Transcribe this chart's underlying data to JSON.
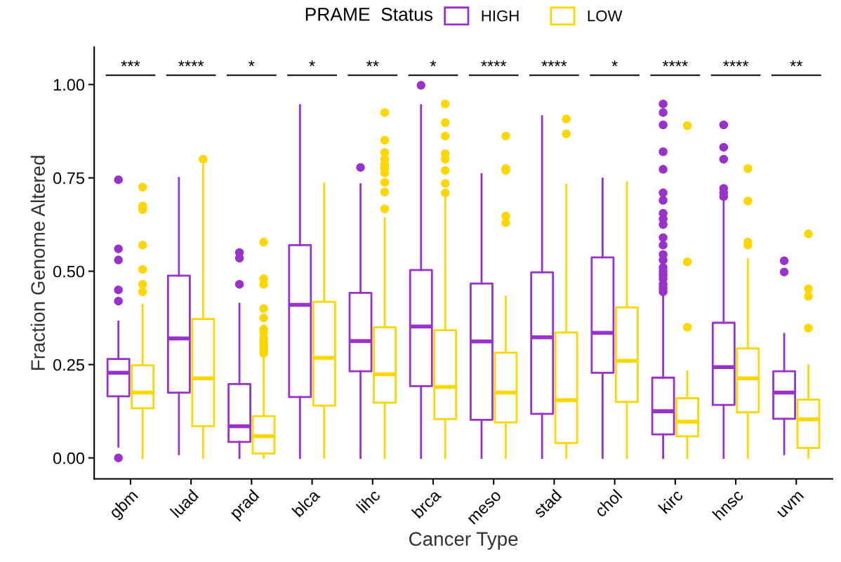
{
  "chart_data": {
    "type": "box",
    "xlabel": "Cancer Type",
    "ylabel": "Fraction Genome Altered",
    "legend_title": "PRAME  Status",
    "legend": "top",
    "categories": [
      "gbm",
      "luad",
      "prad",
      "blca",
      "lihc",
      "brca",
      "meso",
      "stad",
      "chol",
      "kirc",
      "hnsc",
      "uvm"
    ],
    "ylim": [
      -0.056,
      1.1
    ],
    "yticks": [
      {
        "value": 0,
        "label": "0.00"
      },
      {
        "value": 0.25,
        "label": "0.25"
      },
      {
        "value": 0.5,
        "label": "0.50"
      },
      {
        "value": 0.75,
        "label": "0.75"
      },
      {
        "value": 1,
        "label": "1.00"
      }
    ],
    "series": [
      {
        "name": "HIGH",
        "color": "#9932cc",
        "boxes": [
          {
            "low": 0.03,
            "q1": 0.165,
            "median": 0.228,
            "q3": 0.265,
            "high": 0.365,
            "outliers": [
              0.745,
              0.56,
              0.53,
              0.45,
              0.42,
              0.0
            ]
          },
          {
            "low": 0.01,
            "q1": 0.175,
            "median": 0.32,
            "q3": 0.488,
            "high": 0.75
          },
          {
            "low": 0.0,
            "q1": 0.043,
            "median": 0.085,
            "q3": 0.198,
            "high": 0.413,
            "outliers": [
              0.55,
              0.535,
              0.465
            ]
          },
          {
            "low": 0.0,
            "q1": 0.163,
            "median": 0.41,
            "q3": 0.57,
            "high": 0.945
          },
          {
            "low": 0.0,
            "q1": 0.232,
            "median": 0.313,
            "q3": 0.442,
            "high": 0.733,
            "outliers": [
              0.778
            ]
          },
          {
            "low": 0.0,
            "q1": 0.192,
            "median": 0.352,
            "q3": 0.503,
            "high": 0.945,
            "outliers": [
              0.998
            ]
          },
          {
            "low": 0.0,
            "q1": 0.102,
            "median": 0.312,
            "q3": 0.467,
            "high": 0.76
          },
          {
            "low": 0.0,
            "q1": 0.118,
            "median": 0.323,
            "q3": 0.497,
            "high": 0.915
          },
          {
            "low": 0.0,
            "q1": 0.228,
            "median": 0.335,
            "q3": 0.537,
            "high": 0.748
          },
          {
            "low": 0.0,
            "q1": 0.063,
            "median": 0.125,
            "q3": 0.215,
            "high": 0.435,
            "outliers": [
              0.948,
              0.925,
              0.892,
              0.82,
              0.773,
              0.71,
              0.69,
              0.655,
              0.64,
              0.625,
              0.59,
              0.57,
              0.545,
              0.53,
              0.51,
              0.5,
              0.49,
              0.48,
              0.465,
              0.455,
              0.445
            ]
          },
          {
            "low": 0.0,
            "q1": 0.142,
            "median": 0.243,
            "q3": 0.362,
            "high": 0.69,
            "outliers": [
              0.892,
              0.832,
              0.8,
              0.722,
              0.71,
              0.7
            ]
          },
          {
            "low": 0.01,
            "q1": 0.105,
            "median": 0.175,
            "q3": 0.232,
            "high": 0.332,
            "outliers": [
              0.528,
              0.498
            ]
          }
        ]
      },
      {
        "name": "LOW",
        "color": "#ffd700",
        "boxes": [
          {
            "low": 0.0,
            "q1": 0.133,
            "median": 0.175,
            "q3": 0.248,
            "high": 0.41,
            "outliers": [
              0.725,
              0.675,
              0.665,
              0.57,
              0.505,
              0.465,
              0.445
            ]
          },
          {
            "low": 0.0,
            "q1": 0.085,
            "median": 0.213,
            "q3": 0.372,
            "high": 0.785,
            "outliers": [
              0.8
            ]
          },
          {
            "low": 0.0,
            "q1": 0.012,
            "median": 0.058,
            "q3": 0.112,
            "high": 0.27,
            "outliers": [
              0.578,
              0.48,
              0.465,
              0.4,
              0.375,
              0.345,
              0.335,
              0.32,
              0.31,
              0.3,
              0.29,
              0.28
            ]
          },
          {
            "low": 0.0,
            "q1": 0.14,
            "median": 0.268,
            "q3": 0.418,
            "high": 0.735
          },
          {
            "low": 0.0,
            "q1": 0.148,
            "median": 0.224,
            "q3": 0.35,
            "high": 0.642,
            "outliers": [
              0.925,
              0.851,
              0.818,
              0.8,
              0.785,
              0.775,
              0.763,
              0.738,
              0.712,
              0.667
            ]
          },
          {
            "low": 0.0,
            "q1": 0.104,
            "median": 0.19,
            "q3": 0.342,
            "high": 0.7,
            "outliers": [
              0.948,
              0.898,
              0.862,
              0.815,
              0.8,
              0.77,
              0.735,
              0.71
            ]
          },
          {
            "low": 0.0,
            "q1": 0.095,
            "median": 0.175,
            "q3": 0.282,
            "high": 0.432,
            "outliers": [
              0.862,
              0.775,
              0.77,
              0.648,
              0.63
            ]
          },
          {
            "low": 0.0,
            "q1": 0.04,
            "median": 0.155,
            "q3": 0.336,
            "high": 0.732,
            "outliers": [
              0.908,
              0.868
            ]
          },
          {
            "low": 0.0,
            "q1": 0.15,
            "median": 0.26,
            "q3": 0.403,
            "high": 0.738
          },
          {
            "low": 0.0,
            "q1": 0.058,
            "median": 0.097,
            "q3": 0.16,
            "high": 0.232,
            "outliers": [
              0.89,
              0.525,
              0.35
            ]
          },
          {
            "low": 0.0,
            "q1": 0.122,
            "median": 0.213,
            "q3": 0.293,
            "high": 0.532,
            "outliers": [
              0.775,
              0.688,
              0.578,
              0.57
            ]
          },
          {
            "low": 0.0,
            "q1": 0.027,
            "median": 0.103,
            "q3": 0.156,
            "high": 0.248,
            "outliers": [
              0.6,
              0.453,
              0.433,
              0.348
            ]
          }
        ]
      }
    ],
    "annotations": [
      "***",
      "****",
      "*",
      "*",
      "**",
      "*",
      "****",
      "****",
      "*",
      "****",
      "****",
      "**"
    ]
  }
}
